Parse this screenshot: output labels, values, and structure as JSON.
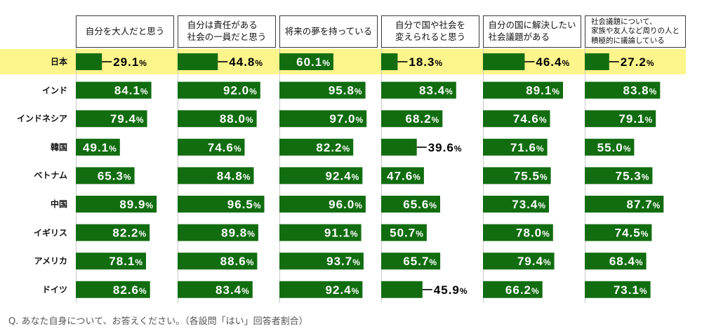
{
  "chart_data": {
    "type": "bar",
    "orientation": "horizontal",
    "categories": [
      "日本",
      "インド",
      "インドネシア",
      "韓国",
      "ベトナム",
      "中国",
      "イギリス",
      "アメリカ",
      "ドイツ"
    ],
    "series": [
      {
        "name": "自分を大人だと思う",
        "values": [
          29.1,
          84.1,
          79.4,
          49.1,
          65.3,
          89.9,
          82.2,
          78.1,
          82.6
        ]
      },
      {
        "name": "自分は責任がある\n社会の一員だと思う",
        "values": [
          44.8,
          92.0,
          88.0,
          74.6,
          84.8,
          96.5,
          89.8,
          88.6,
          83.4
        ]
      },
      {
        "name": "将来の夢を持っている",
        "values": [
          60.1,
          95.8,
          97.0,
          82.2,
          92.4,
          96.0,
          91.1,
          93.7,
          92.4
        ]
      },
      {
        "name": "自分で国や社会を\n変えられると思う",
        "values": [
          18.3,
          83.4,
          68.2,
          39.6,
          47.6,
          65.6,
          50.7,
          65.7,
          45.9
        ]
      },
      {
        "name": "自分の国に解決したい\n社会議題がある",
        "values": [
          46.4,
          89.1,
          74.6,
          71.6,
          75.5,
          73.4,
          78.0,
          79.4,
          66.2
        ]
      },
      {
        "name": "社会議題について、\n家族や友人など周りの人と\n積極的に議論している",
        "values": [
          27.2,
          83.8,
          79.1,
          55.0,
          75.3,
          87.7,
          74.5,
          68.4,
          73.1
        ]
      }
    ],
    "unit": "%",
    "xlim": [
      0,
      100
    ],
    "highlighted_category": "日本",
    "grid": false,
    "legend": "none",
    "colors": {
      "bar": "#116d10",
      "highlight_row": "#fcf58b",
      "label_inside": "#ffffff",
      "label_outside": "#000000"
    }
  },
  "footnote": "Q. あなた自身について、お答えください。（各設問「はい」回答者割合）"
}
